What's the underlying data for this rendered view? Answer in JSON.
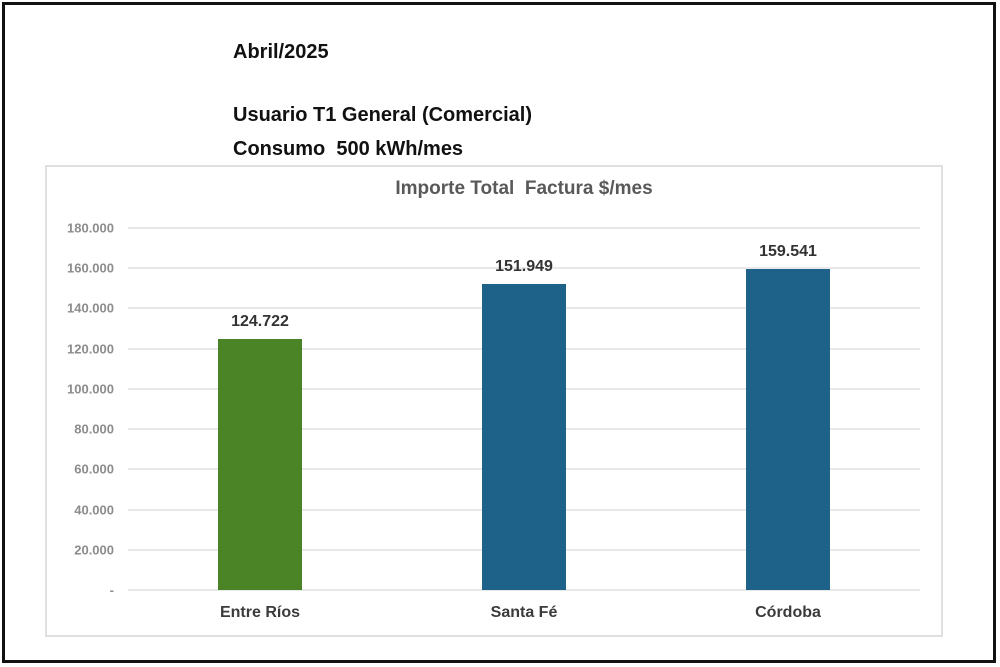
{
  "header": {
    "date": "Abril/2025",
    "line1": "Usuario T1 General (Comercial)",
    "line2": "Consumo  500 kWh/mes"
  },
  "chart_data": {
    "type": "bar",
    "title": "Importe Total  Factura $/mes",
    "categories": [
      "Entre Ríos",
      "Santa Fé",
      "Córdoba"
    ],
    "values": [
      124722,
      151949,
      159541
    ],
    "value_labels": [
      "124.722",
      "151.949",
      "159.541"
    ],
    "bar_colors": [
      "#4a8427",
      "#1e6189",
      "#1e6189"
    ],
    "xlabel": "",
    "ylabel": "",
    "ylim": [
      0,
      180000
    ],
    "ytick_step": 20000,
    "ytick_labels_bottom_up": [
      "-",
      "20.000",
      "40.000",
      "60.000",
      "80.000",
      "100.000",
      "120.000",
      "140.000",
      "160.000",
      "180.000"
    ],
    "grid": true,
    "legend": false
  }
}
